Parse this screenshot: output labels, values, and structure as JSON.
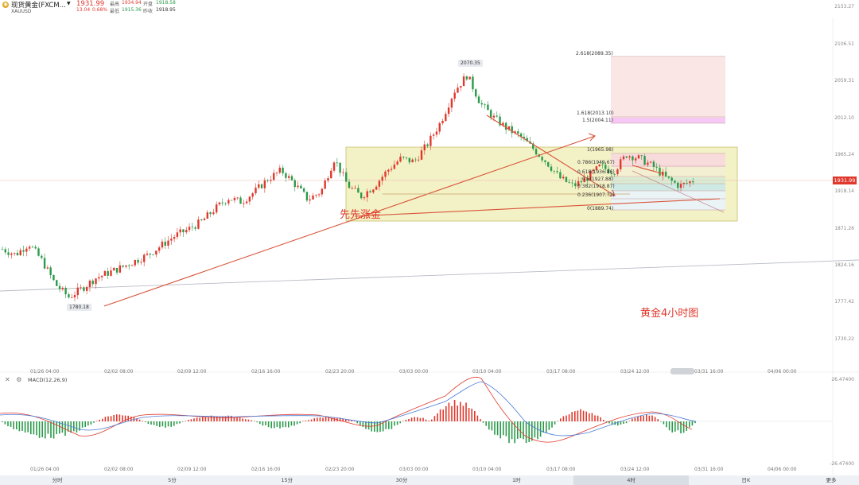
{
  "header": {
    "symbol_icon": "gold-coin-icon",
    "symbol_name": "现货黄金(FXCM...",
    "symbol_code": "XAUUSD",
    "price": "1931.99",
    "change": "13.04",
    "change_pct": "0.68%",
    "quotes": {
      "high_label": "最高",
      "high": "1934.94",
      "open_label": "开盘",
      "open": "1918.58",
      "low_label": "最低",
      "low": "1915.36",
      "prev_label": "昨收",
      "prev": "1918.95"
    }
  },
  "y_axis": {
    "labels": [
      "2153.27",
      "2106.51",
      "2059.31",
      "2012.10",
      "1965.24",
      "1918.14",
      "1871.26",
      "1824.16",
      "1777.42",
      "1730.22"
    ],
    "current_price": "1931.99"
  },
  "macd_axis": {
    "top": "26.47400",
    "bottom": "-26.47400"
  },
  "x_axis": {
    "labels": [
      "01/26 04:00",
      "02/02 08:00",
      "02/09 12:00",
      "02/16 16:00",
      "02/23 20:00",
      "03/03 00:00",
      "03/10 04:00",
      "03/17 08:00",
      "03/24 12:00",
      "03/31 16:00",
      "04/06 00:00"
    ],
    "labels_bottom": [
      "01/26 04:00",
      "02/02 08:00",
      "02/09 12:00",
      "02/16 16:00",
      "02/23 20:00",
      "03/03 00:00",
      "03/10 04:00",
      "03/17 08:00",
      "03/24 12:00",
      "03/31 16:00",
      "04/06 00:00"
    ]
  },
  "annotations": {
    "low_callout": "1780.18",
    "high_callout": "2070.35",
    "chinese_note": "先先涨金",
    "chart_title": "黄金4小时图"
  },
  "fib_top": [
    "2.618(2089.35)",
    "1.618(2013.10)",
    "1.5(2004.11)"
  ],
  "fib_box": [
    "1(1965.98)",
    "0.786(1949.67)",
    "0.618(1936.86)",
    "0.5(1927.88)",
    "0.382(1918.87)",
    "0.236(1907.73)",
    "0(1889.74)"
  ],
  "macd": {
    "label": "MACD(12,26,9)"
  },
  "timeframes": {
    "items": [
      "分时",
      "5分",
      "15分",
      "30分",
      "1时",
      "4时",
      "日K",
      "更多"
    ],
    "active": "4时"
  },
  "colors": {
    "up": "#e0382c",
    "down": "#2b9a4a",
    "fib_fill": "#f3f1c6",
    "trend": "#d9553a"
  },
  "chart_data": {
    "type": "candlestick",
    "symbol": "XAUUSD",
    "interval": "4时",
    "ylim": [
      1730.22,
      2153.27
    ],
    "key_levels": {
      "swing_low": 1780.18,
      "swing_high": 2070.35,
      "last": 1931.99
    },
    "anchor_prices": [
      1845,
      1838,
      1852,
      1830,
      1800,
      1784,
      1795,
      1808,
      1815,
      1822,
      1830,
      1838,
      1850,
      1862,
      1870,
      1880,
      1896,
      1910,
      1905,
      1918,
      1934,
      1945,
      1928,
      1908,
      1918,
      1960,
      1926,
      1912,
      1925,
      1945,
      1960,
      1956,
      1978,
      2006,
      2045,
      2066,
      2030,
      2012,
      1998,
      1988,
      1972,
      1955,
      1935,
      1925,
      1935,
      1950,
      1943,
      1965,
      1960,
      1950,
      1935,
      1925,
      1931.99
    ]
  }
}
